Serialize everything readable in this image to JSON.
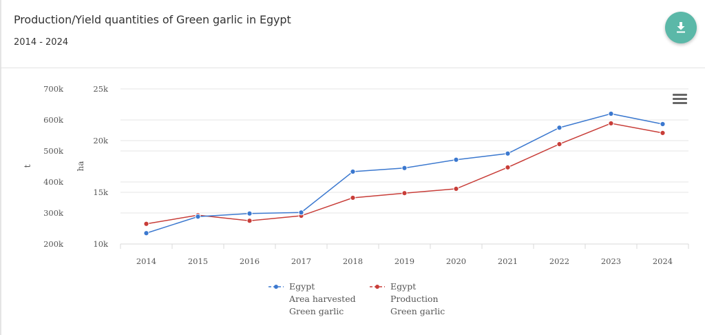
{
  "header": {
    "title": "Production/Yield quantities of Green garlic in Egypt",
    "subtitle": "2014 - 2024",
    "download_icon": "download-icon",
    "menu_icon": "hamburger-menu-icon"
  },
  "colors": {
    "area_series": "#3b78cf",
    "production_series": "#c83d38",
    "download_button": "#5bb8a8",
    "grid": "#e6e6e6",
    "text": "#555555"
  },
  "chart_data": {
    "type": "line",
    "title": "Production/Yield quantities of Green garlic in Egypt",
    "subtitle": "2014 - 2024",
    "categories": [
      "2014",
      "2015",
      "2016",
      "2017",
      "2018",
      "2019",
      "2020",
      "2021",
      "2022",
      "2023",
      "2024"
    ],
    "axes": {
      "y_production": {
        "label": "t",
        "min": 200000,
        "max": 700000,
        "ticks": [
          200000,
          300000,
          400000,
          500000,
          600000,
          700000
        ],
        "tick_labels": [
          "200k",
          "300k",
          "400k",
          "500k",
          "600k",
          "700k"
        ]
      },
      "y_area": {
        "label": "ha",
        "min": 10000,
        "max": 25000,
        "ticks": [
          10000,
          15000,
          20000,
          25000
        ],
        "tick_labels": [
          "10k",
          "15k",
          "20k",
          "25k"
        ]
      }
    },
    "grid": true,
    "legend_position": "bottom-center",
    "series": [
      {
        "name": "Egypt Area harvested Green garlic",
        "legend_lines": [
          "Egypt",
          "Area harvested",
          "Green garlic"
        ],
        "axis": "y_area",
        "unit": "ha",
        "color": "#3b78cf",
        "values": [
          11050,
          12650,
          12950,
          13050,
          17000,
          17350,
          18150,
          18750,
          21250,
          22600,
          21600
        ]
      },
      {
        "name": "Egypt Production Green garlic",
        "legend_lines": [
          "Egypt",
          "Production",
          "Green garlic"
        ],
        "axis": "y_production",
        "unit": "t",
        "color": "#c83d38",
        "values": [
          265000,
          293000,
          275000,
          291000,
          349000,
          364000,
          378000,
          447000,
          522000,
          589000,
          558000
        ]
      }
    ]
  }
}
